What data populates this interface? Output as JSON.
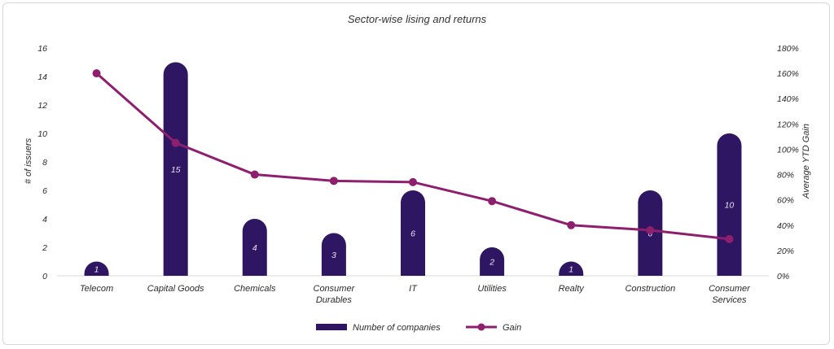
{
  "chart_data": {
    "type": "bar+line",
    "title": "Sector-wise lising and returns",
    "categories": [
      "Telecom",
      "Capital Goods",
      "Chemicals",
      "Consumer Durables",
      "IT",
      "Utilities",
      "Realty",
      "Construction",
      "Consumer Services"
    ],
    "category_lines": [
      [
        "Telecom"
      ],
      [
        "Capital Goods"
      ],
      [
        "Chemicals"
      ],
      [
        "Consumer",
        "Durables"
      ],
      [
        "IT"
      ],
      [
        "Utilities"
      ],
      [
        "Realty"
      ],
      [
        "Construction"
      ],
      [
        "Consumer",
        "Services"
      ]
    ],
    "series": [
      {
        "name": "Number of companies",
        "type": "bar",
        "axis": "left",
        "values": [
          1,
          15,
          4,
          3,
          6,
          2,
          1,
          6,
          10
        ],
        "data_labels": [
          "1",
          "15",
          "4",
          "3",
          "6",
          "2",
          "1",
          "6",
          "10"
        ],
        "color": "#2e1662"
      },
      {
        "name": "Gain",
        "type": "line",
        "axis": "right",
        "values": [
          160,
          105,
          80,
          75,
          74,
          59,
          40,
          36,
          29
        ],
        "color": "#8e1e6e"
      }
    ],
    "y_left": {
      "label": "# of issuers",
      "min": 0,
      "max": 16,
      "ticks": [
        "0",
        "2",
        "4",
        "6",
        "8",
        "10",
        "12",
        "14",
        "16"
      ]
    },
    "y_right": {
      "label": "Average YTD Gain",
      "min": 0,
      "max": 180,
      "ticks": [
        "0%",
        "20%",
        "40%",
        "60%",
        "80%",
        "100%",
        "120%",
        "140%",
        "160%",
        "180%"
      ]
    },
    "legend": {
      "placement": "bottom",
      "items": [
        "Number of companies",
        "Gain"
      ]
    },
    "grid": false
  }
}
